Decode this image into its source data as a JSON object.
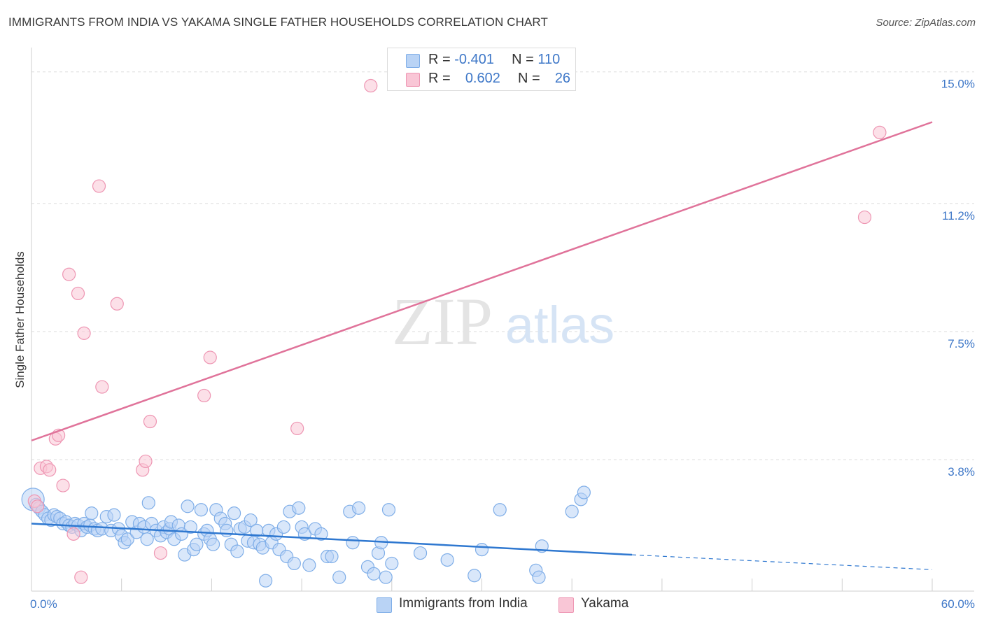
{
  "header": {
    "title": "IMMIGRANTS FROM INDIA VS YAKAMA SINGLE FATHER HOUSEHOLDS CORRELATION CHART",
    "source": "Source: ZipAtlas.com"
  },
  "watermark": {
    "zip": "ZIP",
    "atlas": "atlas"
  },
  "legend": {
    "r_label": "R =",
    "n_label": "N =",
    "rows": [
      {
        "r": "-0.401",
        "n": "110",
        "color": "#7faee8"
      },
      {
        "r": "0.602",
        "n": "26",
        "color": "#ee96b3"
      }
    ]
  },
  "chart_data": {
    "type": "scatter",
    "title": "IMMIGRANTS FROM INDIA VS YAKAMA SINGLE FATHER HOUSEHOLDS CORRELATION CHART",
    "xlabel": "",
    "ylabel": "Single Father Households",
    "xlim": [
      0,
      60
    ],
    "ylim": [
      0,
      15.5
    ],
    "x_tick_labels": [
      "0.0%",
      "60.0%"
    ],
    "y_ticks": [
      3.8,
      7.5,
      11.2,
      15.0
    ],
    "y_tick_labels": [
      "3.8%",
      "7.5%",
      "11.2%",
      "15.0%"
    ],
    "grid": true,
    "series": [
      {
        "name": "Immigrants from India",
        "color": "#7faee8",
        "fill": "#b9d3f5",
        "line_color": "#2f78d0",
        "trend": {
          "x": [
            0,
            40
          ],
          "y": [
            1.95,
            1.05
          ],
          "dashed_extension_to": [
            60,
            0.62
          ]
        },
        "points": [
          [
            0.1,
            2.65
          ],
          [
            0.3,
            2.5
          ],
          [
            0.5,
            2.4
          ],
          [
            0.7,
            2.3
          ],
          [
            0.9,
            2.2
          ],
          [
            1.1,
            2.1
          ],
          [
            1.3,
            2.05
          ],
          [
            1.5,
            2.2
          ],
          [
            1.7,
            2.15
          ],
          [
            1.9,
            2.1
          ],
          [
            2.1,
            1.95
          ],
          [
            2.3,
            2.0
          ],
          [
            2.5,
            1.9
          ],
          [
            2.7,
            1.85
          ],
          [
            2.9,
            1.95
          ],
          [
            3.1,
            1.9
          ],
          [
            3.3,
            1.75
          ],
          [
            3.5,
            1.95
          ],
          [
            3.7,
            1.85
          ],
          [
            3.9,
            1.9
          ],
          [
            4.0,
            2.25
          ],
          [
            4.2,
            1.8
          ],
          [
            4.4,
            1.75
          ],
          [
            4.7,
            1.8
          ],
          [
            5.0,
            2.15
          ],
          [
            5.3,
            1.75
          ],
          [
            5.5,
            2.2
          ],
          [
            5.8,
            1.8
          ],
          [
            6.0,
            1.6
          ],
          [
            6.2,
            1.4
          ],
          [
            6.4,
            1.5
          ],
          [
            6.7,
            2.0
          ],
          [
            7.0,
            1.7
          ],
          [
            7.2,
            1.95
          ],
          [
            7.5,
            1.85
          ],
          [
            7.7,
            1.5
          ],
          [
            7.8,
            2.55
          ],
          [
            8.0,
            1.95
          ],
          [
            8.3,
            1.75
          ],
          [
            8.6,
            1.6
          ],
          [
            8.8,
            1.85
          ],
          [
            9.0,
            1.7
          ],
          [
            9.2,
            1.8
          ],
          [
            9.3,
            2.0
          ],
          [
            9.5,
            1.5
          ],
          [
            9.8,
            1.9
          ],
          [
            10.0,
            1.65
          ],
          [
            10.2,
            1.05
          ],
          [
            10.4,
            2.45
          ],
          [
            10.6,
            1.85
          ],
          [
            10.8,
            1.2
          ],
          [
            11.0,
            1.35
          ],
          [
            11.3,
            2.35
          ],
          [
            11.5,
            1.65
          ],
          [
            11.7,
            1.75
          ],
          [
            11.9,
            1.5
          ],
          [
            12.1,
            1.35
          ],
          [
            12.3,
            2.35
          ],
          [
            12.6,
            2.1
          ],
          [
            12.9,
            1.95
          ],
          [
            13.0,
            1.75
          ],
          [
            13.3,
            1.35
          ],
          [
            13.5,
            2.25
          ],
          [
            13.7,
            1.15
          ],
          [
            13.9,
            1.8
          ],
          [
            14.2,
            1.85
          ],
          [
            14.4,
            1.45
          ],
          [
            14.6,
            2.05
          ],
          [
            14.8,
            1.4
          ],
          [
            15.0,
            1.75
          ],
          [
            15.2,
            1.35
          ],
          [
            15.4,
            1.25
          ],
          [
            15.6,
            0.3
          ],
          [
            15.8,
            1.75
          ],
          [
            16.0,
            1.4
          ],
          [
            16.3,
            1.65
          ],
          [
            16.5,
            1.2
          ],
          [
            16.8,
            1.85
          ],
          [
            17.0,
            1.0
          ],
          [
            17.2,
            2.3
          ],
          [
            17.5,
            0.8
          ],
          [
            17.8,
            2.4
          ],
          [
            18.0,
            1.85
          ],
          [
            18.2,
            1.65
          ],
          [
            18.5,
            0.75
          ],
          [
            18.9,
            1.8
          ],
          [
            19.3,
            1.65
          ],
          [
            19.7,
            1.0
          ],
          [
            20.0,
            1.0
          ],
          [
            20.5,
            0.4
          ],
          [
            21.2,
            2.3
          ],
          [
            21.4,
            1.4
          ],
          [
            21.8,
            2.4
          ],
          [
            22.4,
            0.7
          ],
          [
            22.8,
            0.5
          ],
          [
            23.1,
            1.1
          ],
          [
            23.3,
            1.4
          ],
          [
            23.6,
            0.4
          ],
          [
            23.8,
            2.35
          ],
          [
            24.0,
            0.8
          ],
          [
            25.9,
            1.1
          ],
          [
            27.7,
            0.9
          ],
          [
            29.5,
            0.45
          ],
          [
            30.0,
            1.2
          ],
          [
            31.2,
            2.35
          ],
          [
            33.6,
            0.6
          ],
          [
            33.8,
            0.4
          ],
          [
            34.0,
            1.3
          ],
          [
            36.0,
            2.3
          ],
          [
            36.6,
            2.65
          ],
          [
            36.8,
            2.85
          ]
        ]
      },
      {
        "name": "Yakama",
        "color": "#ee96b3",
        "fill": "#f9c6d6",
        "line_color": "#e0739a",
        "trend": {
          "x": [
            0,
            60
          ],
          "y": [
            4.35,
            13.55
          ]
        },
        "points": [
          [
            0.2,
            2.6
          ],
          [
            0.4,
            2.45
          ],
          [
            0.6,
            3.55
          ],
          [
            1.0,
            3.6
          ],
          [
            1.2,
            3.5
          ],
          [
            1.6,
            4.4
          ],
          [
            1.8,
            4.5
          ],
          [
            2.1,
            3.05
          ],
          [
            2.5,
            9.15
          ],
          [
            2.8,
            1.65
          ],
          [
            3.1,
            8.6
          ],
          [
            3.3,
            0.4
          ],
          [
            3.5,
            7.45
          ],
          [
            4.5,
            11.7
          ],
          [
            4.7,
            5.9
          ],
          [
            5.7,
            8.3
          ],
          [
            7.4,
            3.5
          ],
          [
            7.6,
            3.75
          ],
          [
            7.9,
            4.9
          ],
          [
            8.6,
            1.1
          ],
          [
            11.5,
            5.65
          ],
          [
            11.9,
            6.75
          ],
          [
            17.7,
            4.7
          ],
          [
            22.6,
            14.6
          ],
          [
            55.5,
            10.8
          ],
          [
            56.5,
            13.25
          ]
        ]
      }
    ],
    "legend_position": "top-center"
  },
  "bottom_legend": {
    "items": [
      {
        "label": "Immigrants from India"
      },
      {
        "label": "Yakama"
      }
    ]
  }
}
